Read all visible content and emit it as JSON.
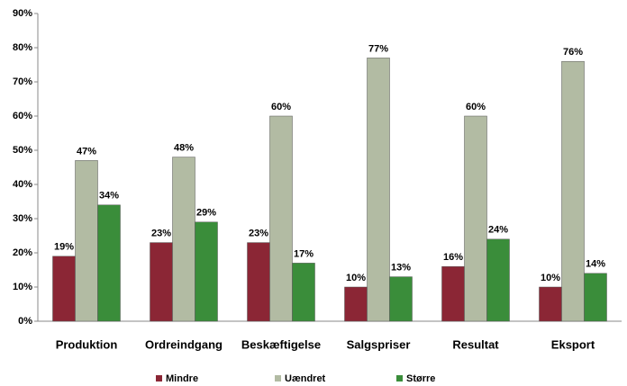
{
  "chart_data": {
    "type": "bar",
    "categories": [
      "Produktion",
      "Ordreindgang",
      "Beskæftigelse",
      "Salgspriser",
      "Resultat",
      "Eksport"
    ],
    "series": [
      {
        "name": "Mindre",
        "color": "#8b2635",
        "values": [
          19,
          23,
          23,
          10,
          16,
          10
        ],
        "value_labels": [
          "19%",
          "23%",
          "23%",
          "10%",
          "16%",
          "10%"
        ]
      },
      {
        "name": "Uændret",
        "color": "#b2bba3",
        "values": [
          47,
          48,
          60,
          77,
          60,
          76
        ],
        "value_labels": [
          "47%",
          "48%",
          "60%",
          "77%",
          "60%",
          "76%"
        ]
      },
      {
        "name": "Større",
        "color": "#3a8d3a",
        "values": [
          34,
          29,
          17,
          13,
          24,
          14
        ],
        "value_labels": [
          "34%",
          "29%",
          "17%",
          "13%",
          "24%",
          "14%"
        ]
      }
    ],
    "ylim": [
      0,
      90
    ],
    "yticks": [
      {
        "value": 0,
        "label": "0%"
      },
      {
        "value": 10,
        "label": "10%"
      },
      {
        "value": 20,
        "label": "20%"
      },
      {
        "value": 30,
        "label": "30%"
      },
      {
        "value": 40,
        "label": "40%"
      },
      {
        "value": 50,
        "label": "50%"
      },
      {
        "value": 60,
        "label": "60%"
      },
      {
        "value": 70,
        "label": "70%"
      },
      {
        "value": 80,
        "label": "80%"
      },
      {
        "value": 90,
        "label": "90%"
      }
    ],
    "grid": false,
    "legend": "bottom"
  }
}
